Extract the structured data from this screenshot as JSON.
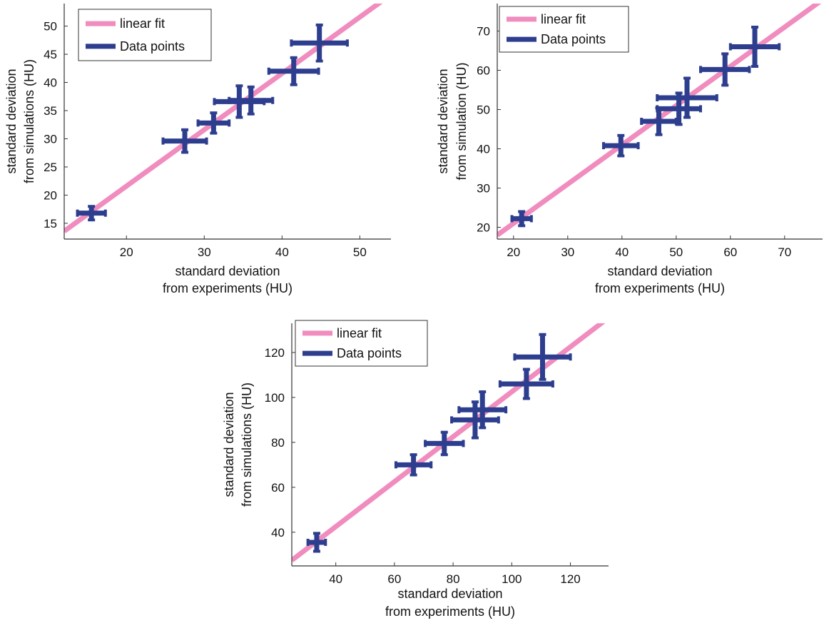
{
  "colors": {
    "fit_line": "#F08CBE",
    "data_points": "#2E3E8E",
    "axis": "#333333",
    "text": "#111111"
  },
  "chart_data": [
    {
      "type": "scatter",
      "xlabel": [
        "standard deviation",
        "from experiments (HU)"
      ],
      "ylabel": [
        "standard deviation",
        "from simulations (HU)"
      ],
      "xlim": [
        12,
        54
      ],
      "ylim": [
        12.2,
        54
      ],
      "xticks": [
        20,
        30,
        40,
        50
      ],
      "yticks": [
        15,
        20,
        25,
        30,
        35,
        40,
        45,
        50
      ],
      "grid": false,
      "legend_placement": "top-left",
      "fit": {
        "slope": 1.0,
        "intercept": 1.6,
        "x_range": [
          12,
          54
        ]
      },
      "series": [
        {
          "name": "linear fit",
          "kind": "line"
        },
        {
          "name": "Data points",
          "kind": "errorbar",
          "x": [
            15.5,
            27.5,
            31.2,
            34.5,
            36.0,
            41.5,
            44.8
          ],
          "y": [
            16.8,
            29.6,
            32.8,
            36.6,
            36.8,
            42.0,
            47.0
          ],
          "xerr": [
            1.8,
            2.8,
            2.0,
            3.2,
            2.8,
            3.2,
            3.6
          ],
          "yerr": [
            1.2,
            2.0,
            1.8,
            2.8,
            2.4,
            2.4,
            3.2
          ]
        }
      ]
    },
    {
      "type": "scatter",
      "xlabel": [
        "standard deviation",
        "from experiments (HU)"
      ],
      "ylabel": [
        "standard deviation",
        "from simulation (HU)"
      ],
      "xlim": [
        17,
        77
      ],
      "ylim": [
        17,
        77
      ],
      "xticks": [
        20,
        30,
        40,
        50,
        60,
        70
      ],
      "yticks": [
        20,
        30,
        40,
        50,
        60,
        70
      ],
      "grid": false,
      "legend_placement": "top-left",
      "fit": {
        "slope": 1.0,
        "intercept": 1.0,
        "x_range": [
          17,
          77
        ]
      },
      "series": [
        {
          "name": "linear fit",
          "kind": "line"
        },
        {
          "name": "Data points",
          "kind": "errorbar",
          "x": [
            21.5,
            39.8,
            46.8,
            50.5,
            52.0,
            59.0,
            64.5
          ],
          "y": [
            22.2,
            40.8,
            47.0,
            50.2,
            53.0,
            60.2,
            66.0
          ],
          "xerr": [
            1.8,
            3.2,
            3.2,
            4.0,
            5.5,
            4.5,
            4.5
          ],
          "yerr": [
            1.8,
            2.6,
            3.4,
            4.0,
            5.0,
            4.0,
            5.0
          ]
        }
      ]
    },
    {
      "type": "scatter",
      "xlabel": [
        "standard deviation",
        "from experiments (HU)"
      ],
      "ylabel": [
        "standard deviation",
        "from simulations (HU)"
      ],
      "xlim": [
        25,
        133
      ],
      "ylim": [
        25,
        133
      ],
      "xticks": [
        40,
        60,
        80,
        100,
        120
      ],
      "yticks": [
        40,
        60,
        80,
        100,
        120
      ],
      "grid": false,
      "legend_placement": "top-left",
      "fit": {
        "slope": 1.0,
        "intercept": 2.5,
        "x_range": [
          25,
          133
        ]
      },
      "series": [
        {
          "name": "linear fit",
          "kind": "line"
        },
        {
          "name": "Data points",
          "kind": "errorbar",
          "x": [
            33.5,
            66.5,
            77.0,
            87.5,
            90.0,
            105.0,
            110.5
          ],
          "y": [
            35.5,
            70.0,
            79.5,
            90.0,
            94.5,
            106.0,
            118.0
          ],
          "xerr": [
            3.0,
            6.0,
            6.5,
            8.0,
            8.0,
            9.0,
            9.5
          ],
          "yerr": [
            4.0,
            4.5,
            5.0,
            8.0,
            8.0,
            6.5,
            10.0
          ]
        }
      ]
    }
  ]
}
